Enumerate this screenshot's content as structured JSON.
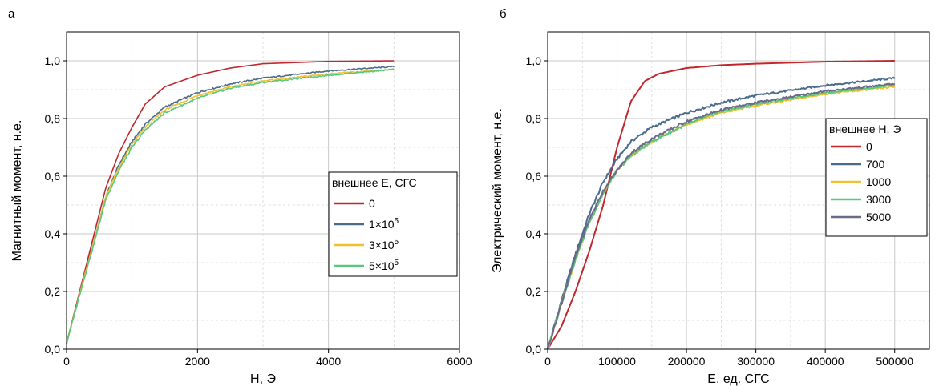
{
  "chart_data": [
    {
      "panel_label": "а",
      "type": "line",
      "xlabel": "H, Э",
      "ylabel": "Магнитный момент, н.е.",
      "xlim": [
        0,
        6000
      ],
      "ylim": [
        0,
        1.1
      ],
      "xticks": [
        "0",
        "2000",
        "4000",
        "6000"
      ],
      "yticks": [
        "0,0",
        "0,2",
        "0,4",
        "0,6",
        "0,8",
        "1,0"
      ],
      "grid": true,
      "legend": {
        "title": "внешнее E, СГС",
        "placement": "right-center"
      },
      "series": [
        {
          "name": "0",
          "legend_base": "0",
          "legend_exp": "",
          "color": "#c0282d",
          "x": [
            0,
            200,
            400,
            600,
            800,
            1000,
            1200,
            1500,
            2000,
            2500,
            3000,
            4000,
            5000
          ],
          "y": [
            0.02,
            0.2,
            0.38,
            0.56,
            0.68,
            0.77,
            0.85,
            0.91,
            0.95,
            0.975,
            0.99,
            0.998,
            1.0
          ]
        },
        {
          "name": "1×10^5",
          "legend_base": "1×10",
          "legend_exp": "5",
          "color": "#4a6b8a",
          "x": [
            0,
            200,
            400,
            600,
            800,
            1000,
            1200,
            1500,
            2000,
            2500,
            3000,
            4000,
            5000
          ],
          "y": [
            0.02,
            0.19,
            0.36,
            0.53,
            0.64,
            0.72,
            0.78,
            0.84,
            0.89,
            0.92,
            0.94,
            0.965,
            0.98
          ]
        },
        {
          "name": "3×10^5",
          "legend_base": "3×10",
          "legend_exp": "5",
          "color": "#f0c030",
          "x": [
            0,
            200,
            400,
            600,
            800,
            1000,
            1200,
            1500,
            2000,
            2500,
            3000,
            4000,
            5000
          ],
          "y": [
            0.02,
            0.19,
            0.36,
            0.53,
            0.63,
            0.71,
            0.77,
            0.83,
            0.88,
            0.91,
            0.93,
            0.955,
            0.97
          ]
        },
        {
          "name": "5×10^5",
          "legend_base": "5×10",
          "legend_exp": "5",
          "color": "#5ac87a",
          "x": [
            0,
            200,
            400,
            600,
            800,
            1000,
            1200,
            1500,
            2000,
            2500,
            3000,
            4000,
            5000
          ],
          "y": [
            0.02,
            0.19,
            0.35,
            0.52,
            0.62,
            0.7,
            0.76,
            0.82,
            0.87,
            0.905,
            0.925,
            0.95,
            0.97
          ]
        }
      ]
    },
    {
      "panel_label": "б",
      "type": "line",
      "xlabel": "E, ед. СГС",
      "ylabel": "Электрический момент, н.е.",
      "xlim": [
        0,
        550000
      ],
      "ylim": [
        0,
        1.1
      ],
      "xticks": [
        "0",
        "100000",
        "200000",
        "300000",
        "400000",
        "500000"
      ],
      "xtick_values": [
        0,
        100000,
        200000,
        300000,
        400000,
        500000
      ],
      "yticks": [
        "0,0",
        "0,2",
        "0,4",
        "0,6",
        "0,8",
        "1,0"
      ],
      "grid": true,
      "legend": {
        "title": "внешнее H, Э",
        "placement": "right-center"
      },
      "series": [
        {
          "name": "0",
          "color": "#c0282d",
          "x": [
            0,
            20000,
            40000,
            60000,
            80000,
            100000,
            120000,
            140000,
            160000,
            200000,
            250000,
            300000,
            400000,
            500000
          ],
          "y": [
            0,
            0.08,
            0.2,
            0.34,
            0.5,
            0.7,
            0.86,
            0.93,
            0.955,
            0.975,
            0.985,
            0.99,
            0.997,
            1.0
          ]
        },
        {
          "name": "700",
          "color": "#4a6b8a",
          "x": [
            0,
            20000,
            40000,
            60000,
            80000,
            100000,
            120000,
            150000,
            200000,
            250000,
            300000,
            400000,
            500000
          ],
          "y": [
            0,
            0.17,
            0.33,
            0.47,
            0.58,
            0.66,
            0.72,
            0.77,
            0.82,
            0.855,
            0.88,
            0.915,
            0.94
          ]
        },
        {
          "name": "1000",
          "color": "#f0c030",
          "x": [
            0,
            20000,
            40000,
            60000,
            80000,
            100000,
            120000,
            150000,
            200000,
            250000,
            300000,
            400000,
            500000
          ],
          "y": [
            0,
            0.16,
            0.31,
            0.44,
            0.54,
            0.62,
            0.67,
            0.72,
            0.78,
            0.82,
            0.845,
            0.885,
            0.91
          ]
        },
        {
          "name": "3000",
          "color": "#5ac87a",
          "x": [
            0,
            20000,
            40000,
            60000,
            80000,
            100000,
            120000,
            150000,
            200000,
            250000,
            300000,
            400000,
            500000
          ],
          "y": [
            0,
            0.16,
            0.31,
            0.44,
            0.54,
            0.62,
            0.67,
            0.72,
            0.78,
            0.825,
            0.85,
            0.89,
            0.915
          ]
        },
        {
          "name": "5000",
          "color": "#6a6a8a",
          "x": [
            0,
            20000,
            40000,
            60000,
            80000,
            100000,
            120000,
            150000,
            200000,
            250000,
            300000,
            400000,
            500000
          ],
          "y": [
            0,
            0.16,
            0.32,
            0.45,
            0.55,
            0.62,
            0.68,
            0.73,
            0.79,
            0.83,
            0.855,
            0.895,
            0.92
          ]
        }
      ]
    }
  ]
}
